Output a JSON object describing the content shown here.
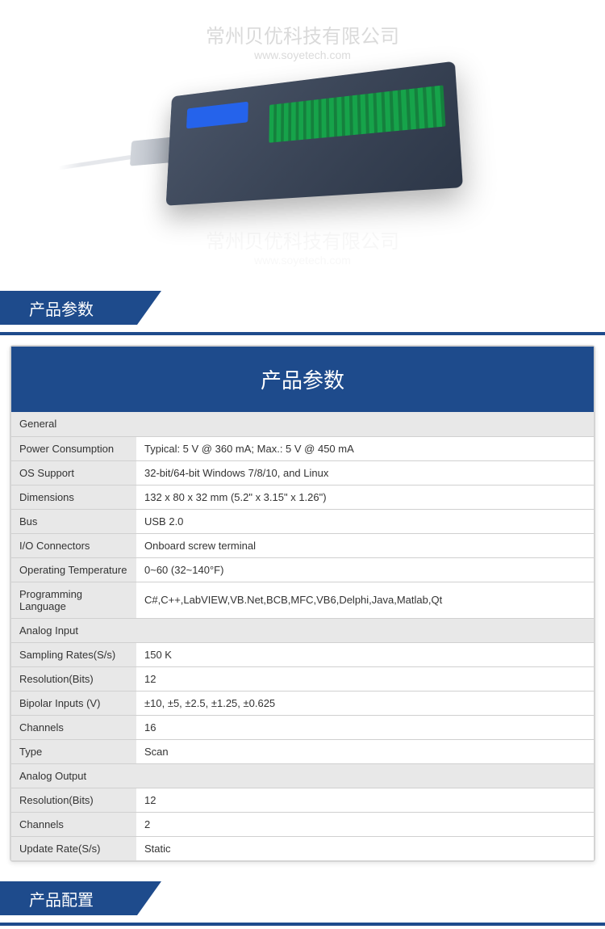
{
  "watermark": {
    "company": "常州贝优科技有限公司",
    "url": "www.soyetech.com"
  },
  "sections": {
    "specs_header": "产品参数",
    "config_header": "产品配置",
    "table_title": "产品参数"
  },
  "colors": {
    "header_bg": "#1e4b8c",
    "header_text": "#ffffff",
    "cell_label_bg": "#e8e8e8",
    "cell_value_bg": "#ffffff",
    "border": "#d0d0d0",
    "text": "#333333"
  },
  "spec_table": {
    "groups": [
      {
        "category": "General",
        "rows": [
          {
            "label": "Power Consumption",
            "value": "Typical: 5 V @ 360 mA; Max.: 5 V @ 450 mA"
          },
          {
            "label": "OS Support",
            "value": "32-bit/64-bit Windows 7/8/10, and Linux"
          },
          {
            "label": "Dimensions",
            "value": "132 x 80 x 32 mm (5.2\" x 3.15\" x 1.26\")"
          },
          {
            "label": "Bus",
            "value": "USB 2.0"
          },
          {
            "label": "I/O Connectors",
            "value": "Onboard screw terminal"
          },
          {
            "label": "Operating Temperature",
            "value": "0~60 (32~140°F)"
          },
          {
            "label": "Programming Language",
            "value": "C#,C++,LabVIEW,VB.Net,BCB,MFC,VB6,Delphi,Java,Matlab,Qt"
          }
        ]
      },
      {
        "category": "Analog Input",
        "rows": [
          {
            "label": "Sampling Rates(S/s)",
            "value": "150 K"
          },
          {
            "label": "Resolution(Bits)",
            "value": "12"
          },
          {
            "label": "Bipolar Inputs (V)",
            "value": "±10, ±5, ±2.5, ±1.25, ±0.625"
          },
          {
            "label": "Channels",
            "value": "16"
          },
          {
            "label": "Type",
            "value": "Scan"
          }
        ]
      },
      {
        "category": "Analog Output",
        "rows": [
          {
            "label": "Resolution(Bits)",
            "value": "12"
          },
          {
            "label": "Channels",
            "value": "2"
          },
          {
            "label": "Update Rate(S/s)",
            "value": "Static"
          }
        ]
      }
    ]
  }
}
